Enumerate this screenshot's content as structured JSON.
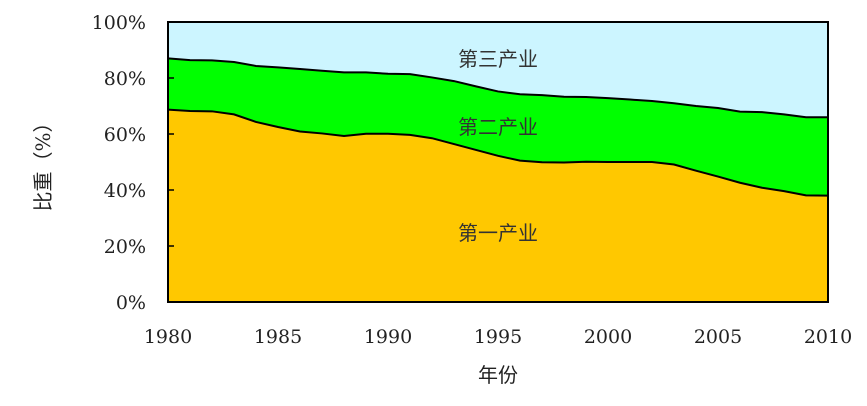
{
  "chart_data": {
    "type": "area",
    "stacked": true,
    "title": "",
    "xlabel": "年份",
    "ylabel": "比重（%）",
    "xlim": [
      1980,
      2010
    ],
    "ylim": [
      0,
      100
    ],
    "x_ticks": [
      "1980",
      "1985",
      "1990",
      "1995",
      "2000",
      "2005",
      "2010"
    ],
    "y_ticks": [
      "0%",
      "20%",
      "40%",
      "60%",
      "80%",
      "100%"
    ],
    "x": [
      1980,
      1981,
      1982,
      1983,
      1984,
      1985,
      1986,
      1987,
      1988,
      1989,
      1990,
      1991,
      1992,
      1993,
      1994,
      1995,
      1996,
      1997,
      1998,
      1999,
      2000,
      2001,
      2002,
      2003,
      2004,
      2005,
      2006,
      2007,
      2008,
      2009,
      2010
    ],
    "series": [
      {
        "name": "第一产业",
        "color": "#FFC800",
        "values": [
          68.7,
          68.2,
          68.1,
          67,
          64.3,
          62.5,
          60.9,
          60.2,
          59.3,
          60.1,
          60.1,
          59.7,
          58.5,
          56.4,
          54.3,
          52.2,
          50.5,
          49.9,
          49.8,
          50.1,
          50,
          50,
          50,
          49.1,
          46.9,
          44.8,
          42.6,
          40.8,
          39.6,
          38.1,
          38
        ]
      },
      {
        "name": "第二产业",
        "color": "#00FF00",
        "values": [
          18.3,
          18.2,
          18.2,
          18.7,
          20,
          21.3,
          22.3,
          22.4,
          22.7,
          21.9,
          21.4,
          21.7,
          21.7,
          22.5,
          22.7,
          23,
          23.7,
          24,
          23.5,
          23.1,
          22.8,
          22.3,
          21.8,
          21.9,
          23.1,
          24.5,
          25.4,
          27,
          27.4,
          27.9,
          28
        ]
      },
      {
        "name": "第三产业",
        "color": "#CCF5FF",
        "values": [
          13,
          13.6,
          13.7,
          14.3,
          15.7,
          16.2,
          16.9,
          17.4,
          18,
          18,
          18.5,
          18.6,
          19.8,
          21.1,
          23,
          24.8,
          25.8,
          26.1,
          26.7,
          26.8,
          27.2,
          27.7,
          28.2,
          29,
          30,
          30.7,
          32,
          32.2,
          33,
          34,
          34
        ]
      }
    ],
    "labels": [
      "第三产业",
      "第二产业",
      "第一产业"
    ],
    "grid": false,
    "legend": "none"
  }
}
